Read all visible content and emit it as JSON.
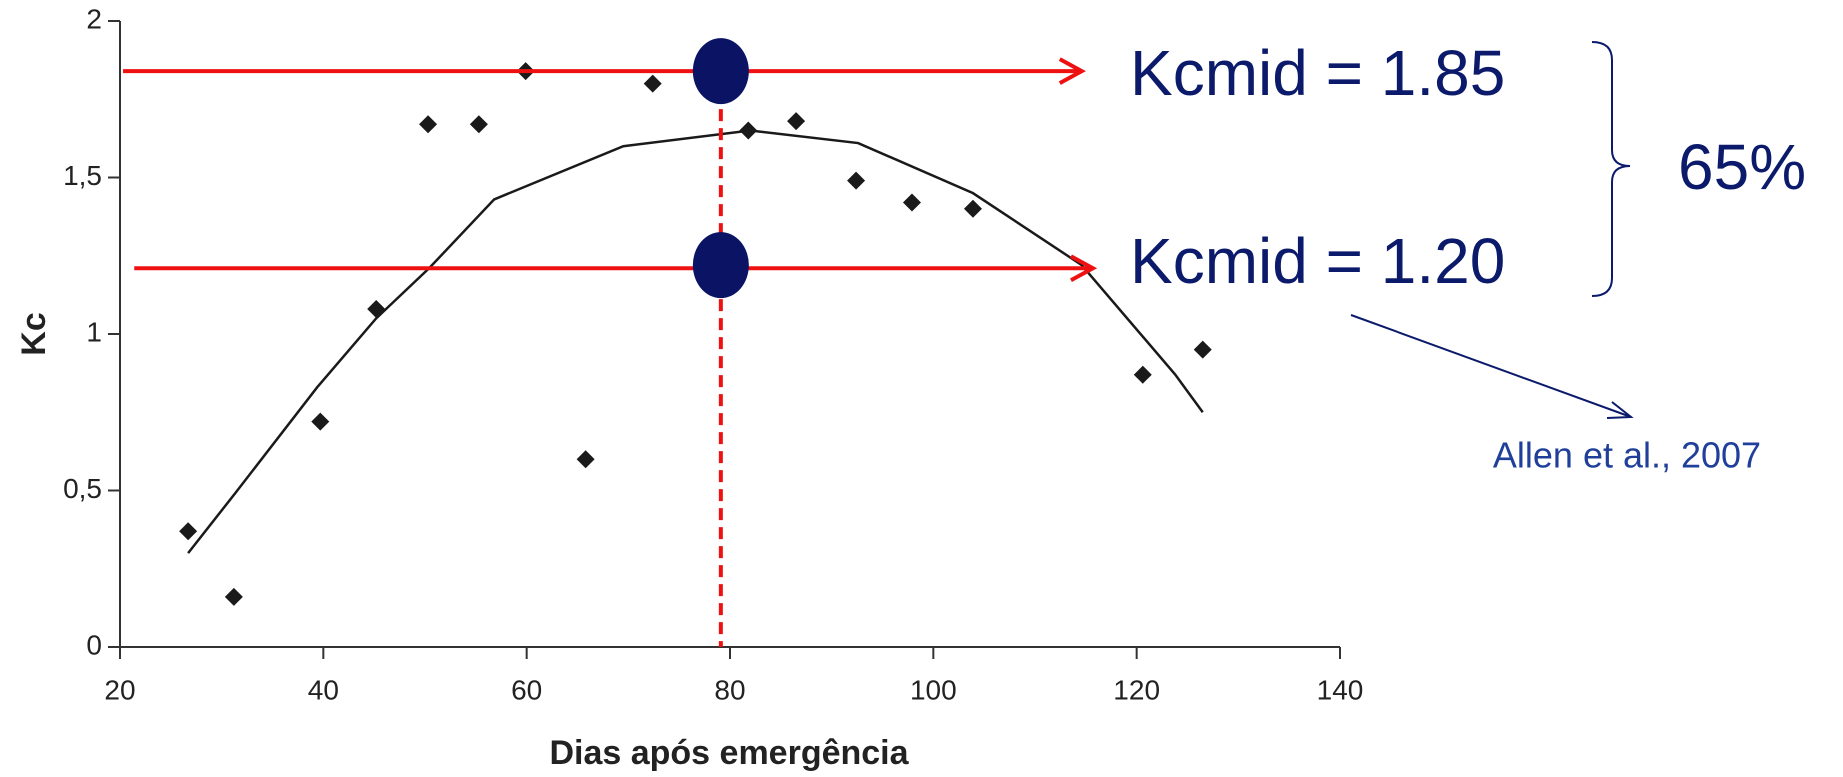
{
  "chart_data": {
    "type": "scatter",
    "x_label": "Dias após emergência",
    "y_label": "Kc",
    "xlim": [
      20,
      140
    ],
    "ylim": [
      0,
      2
    ],
    "xticks": [
      20,
      40,
      60,
      80,
      100,
      120,
      140
    ],
    "yticks": [
      0,
      {
        "value": 0.5,
        "label": "0,5"
      },
      1,
      {
        "value": 1.5,
        "label": "1,5"
      },
      2
    ],
    "x": [
      26.7,
      31.2,
      39.7,
      45.2,
      50.3,
      55.3,
      59.9,
      65.8,
      72.4,
      81.8,
      86.5,
      92.4,
      97.9,
      103.9,
      120.6,
      126.5
    ],
    "series": [
      {
        "color": "#1a1a1a",
        "values": [
          0.37,
          0.16,
          0.72,
          1.08,
          1.67,
          1.67,
          1.84,
          0.6,
          1.8,
          1.65,
          1.68,
          1.49,
          1.42,
          1.4,
          0.87,
          0.95
        ]
      }
    ],
    "trend": {
      "color": "#1a1a1a",
      "x": [
        26.7,
        31.3,
        39.4,
        45.2,
        50.4,
        56.8,
        69.5,
        82,
        92.6,
        103.9,
        114.6,
        123.8,
        126.5
      ],
      "values": [
        0.3,
        0.49,
        0.83,
        1.05,
        1.21,
        1.43,
        1.6,
        1.65,
        1.61,
        1.45,
        1.22,
        0.87,
        0.75
      ]
    },
    "reference_color": "#ee1111",
    "hlines": [
      {
        "value": 1.84,
        "x_range": [
          20.3,
          114.6
        ]
      },
      {
        "value": 1.21,
        "x_range": [
          21.4,
          115.7
        ]
      }
    ],
    "vline": {
      "value": 79.1,
      "y_range": [
        0,
        1.84
      ]
    },
    "marker_color": "#0b1464",
    "markers": [
      {
        "x": 79.1,
        "y": 1.84
      },
      {
        "x": 79.1,
        "y": 1.22
      }
    ],
    "annotations": [
      "Kcmid = 1.85",
      "Kcmid = 1.20",
      "65%",
      "Allen et al., 2007"
    ]
  }
}
